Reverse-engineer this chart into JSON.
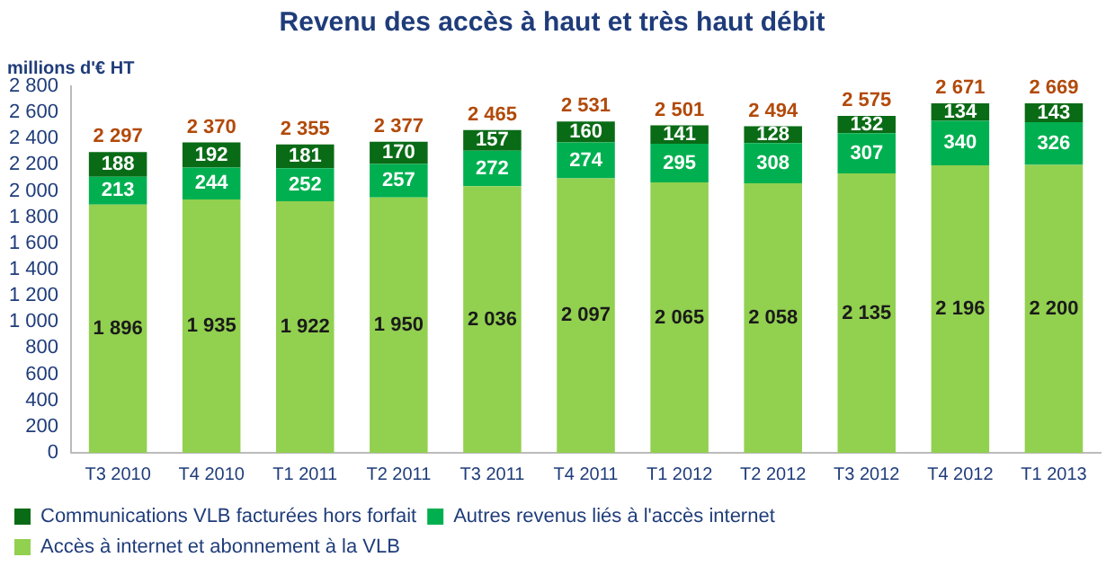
{
  "chart_data": {
    "type": "bar",
    "title": "Revenu des accès à haut et très haut débit",
    "ylabel": "millions d'€ HT",
    "categories": [
      "T3 2010",
      "T4 2010",
      "T1 2011",
      "T2 2011",
      "T3 2011",
      "T4 2011",
      "T1 2012",
      "T2 2012",
      "T3 2012",
      "T4 2012",
      "T1 2013"
    ],
    "stacked": true,
    "series": [
      {
        "name": "Accès à internet et abonnement à la VLB",
        "color": "#92d050",
        "values": [
          1896,
          1935,
          1922,
          1950,
          2036,
          2097,
          2065,
          2058,
          2135,
          2196,
          2200
        ],
        "value_labels": [
          "1 896",
          "1 935",
          "1 922",
          "1 950",
          "2 036",
          "2 097",
          "2 065",
          "2 058",
          "2 135",
          "2 196",
          "2 200"
        ]
      },
      {
        "name": "Autres revenus liés à l'accès internet",
        "color": "#00b050",
        "values": [
          213,
          244,
          252,
          257,
          272,
          274,
          295,
          308,
          307,
          340,
          326
        ],
        "value_labels": [
          "213",
          "244",
          "252",
          "257",
          "272",
          "274",
          "295",
          "308",
          "307",
          "340",
          "326"
        ]
      },
      {
        "name": "Communications VLB facturées hors forfait",
        "color": "#0a6b16",
        "values": [
          188,
          192,
          181,
          170,
          157,
          160,
          141,
          128,
          132,
          134,
          143
        ],
        "value_labels": [
          "188",
          "192",
          "181",
          "170",
          "157",
          "160",
          "141",
          "128",
          "132",
          "134",
          "143"
        ]
      }
    ],
    "totals": [
      "2 297",
      "2 370",
      "2 355",
      "2 377",
      "2 465",
      "2 531",
      "2 501",
      "2 494",
      "2 575",
      "2 671",
      "2 669"
    ],
    "ylim": [
      0,
      2800
    ],
    "yticks": [
      {
        "value": 0,
        "label": "0"
      },
      {
        "value": 200,
        "label": "200"
      },
      {
        "value": 400,
        "label": "400"
      },
      {
        "value": 600,
        "label": "600"
      },
      {
        "value": 800,
        "label": "800"
      },
      {
        "value": 1000,
        "label": "1 000"
      },
      {
        "value": 1200,
        "label": "1 200"
      },
      {
        "value": 1400,
        "label": "1 400"
      },
      {
        "value": 1600,
        "label": "1 600"
      },
      {
        "value": 1800,
        "label": "1 800"
      },
      {
        "value": 2000,
        "label": "2 000"
      },
      {
        "value": 2200,
        "label": "2 200"
      },
      {
        "value": 2400,
        "label": "2 400"
      },
      {
        "value": 2600,
        "label": "2 600"
      },
      {
        "value": 2800,
        "label": "2 800"
      }
    ],
    "grid": false,
    "legend": "bottom"
  }
}
